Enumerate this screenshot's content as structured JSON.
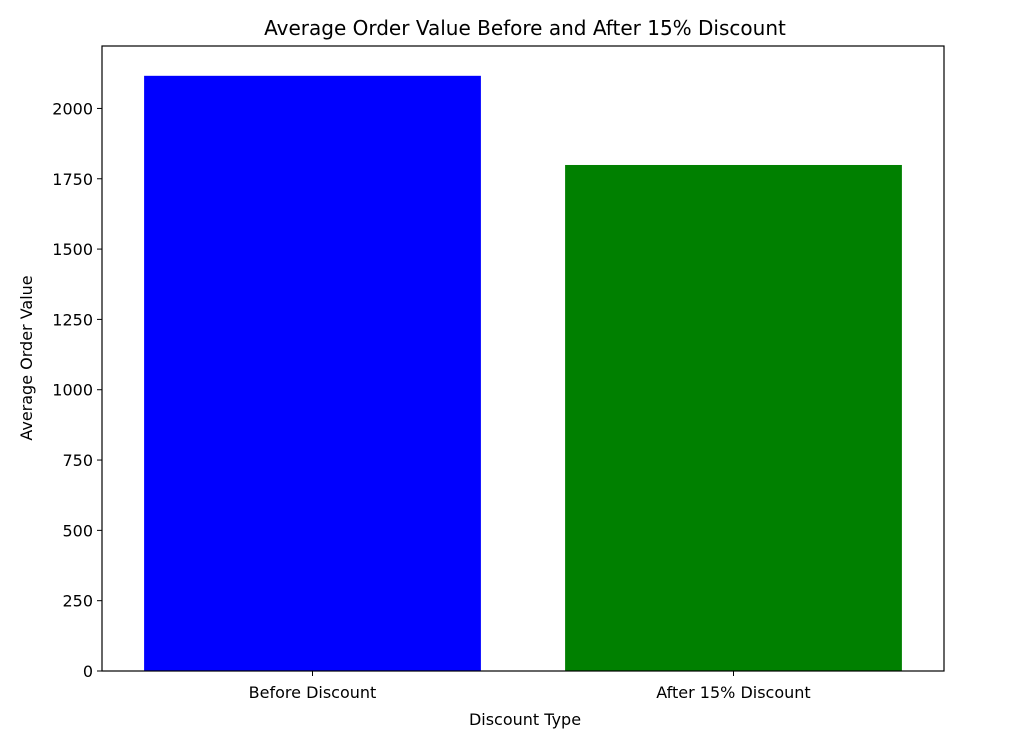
{
  "chart_data": {
    "type": "bar",
    "title": "Average Order Value Before and After 15% Discount",
    "xlabel": "Discount Type",
    "ylabel": "Average Order Value",
    "categories": [
      "Before Discount",
      "After 15% Discount"
    ],
    "values": [
      2116,
      1799
    ],
    "colors": [
      "#0000ff",
      "#008000"
    ],
    "ylim": [
      0,
      2222
    ],
    "yticks": [
      0,
      250,
      500,
      750,
      1000,
      1250,
      1500,
      1750,
      2000
    ],
    "grid": false,
    "legend": "none"
  }
}
